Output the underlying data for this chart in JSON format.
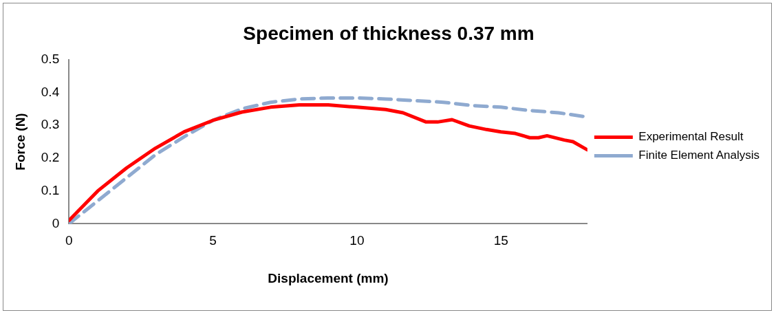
{
  "chart_data": {
    "type": "line",
    "title": "Specimen of thickness 0.37 mm",
    "xlabel": "Displacement (mm)",
    "ylabel": "Force (N)",
    "xlim": [
      0,
      18
    ],
    "xticks": [
      0,
      5,
      10,
      15
    ],
    "ylim": [
      0,
      0.5
    ],
    "yticks": [
      0,
      0.1,
      0.2,
      0.3,
      0.4,
      0.5
    ],
    "grid": false,
    "legend": "right",
    "marker": "none",
    "series": [
      {
        "name": "Experimental Result",
        "color": "#ff0000",
        "line_style": "solid",
        "x": [
          0,
          1,
          2,
          3,
          4,
          5,
          6,
          7,
          8,
          9,
          10,
          11,
          11.6,
          12.4,
          12.8,
          13.3,
          13.9,
          14.5,
          15,
          15.5,
          16,
          16.3,
          16.6,
          17.2,
          17.5,
          18
        ],
        "values": [
          0.01,
          0.1,
          0.17,
          0.23,
          0.28,
          0.315,
          0.34,
          0.355,
          0.362,
          0.362,
          0.355,
          0.348,
          0.338,
          0.31,
          0.31,
          0.317,
          0.298,
          0.287,
          0.28,
          0.275,
          0.262,
          0.262,
          0.268,
          0.255,
          0.25,
          0.225
        ]
      },
      {
        "name": "Finite Element Analysis",
        "color": "#8faad0",
        "line_style": "dashed",
        "x": [
          0,
          1,
          2,
          3,
          4,
          5,
          6,
          7,
          8,
          9,
          10,
          11,
          12,
          13,
          14,
          15,
          16,
          17,
          18
        ],
        "values": [
          0,
          0.07,
          0.14,
          0.21,
          0.265,
          0.315,
          0.35,
          0.37,
          0.38,
          0.383,
          0.383,
          0.38,
          0.375,
          0.37,
          0.36,
          0.355,
          0.345,
          0.338,
          0.325
        ]
      }
    ]
  }
}
